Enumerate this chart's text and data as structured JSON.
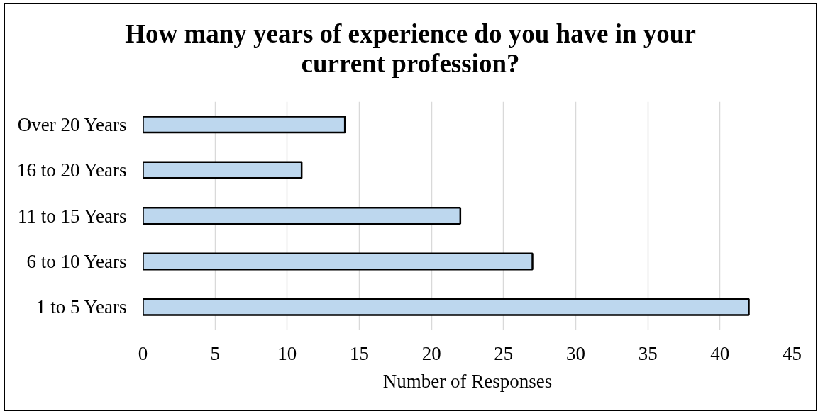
{
  "chart_data": {
    "type": "bar",
    "orientation": "horizontal",
    "title": "How many years of experience do you have in your current profession?",
    "xlabel": "Number of Responses",
    "categories": [
      "Over 20 Years",
      "16 to 20 Years",
      "11 to 15 Years",
      "6 to 10 Years",
      "1 to 5 Years"
    ],
    "values": [
      14,
      11,
      22,
      27,
      42
    ],
    "color": "#bdd7ee",
    "xlim": [
      0,
      45
    ],
    "xticks": [
      0,
      5,
      10,
      15,
      20,
      25,
      30,
      35,
      40,
      45
    ],
    "grid": "x"
  }
}
